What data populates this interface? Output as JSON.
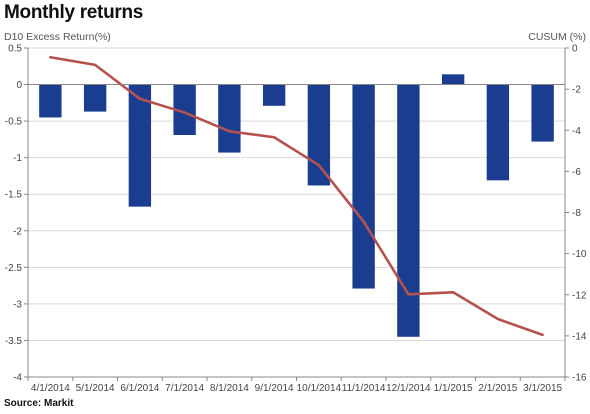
{
  "chart_data": {
    "type": "bar+line",
    "title": "Monthly returns",
    "source": "Source: Markit",
    "y_left_label": "D10 Excess Return(%)",
    "y_right_label": "CUSUM (%)",
    "categories": [
      "4/1/2014",
      "5/1/2014",
      "6/1/2014",
      "7/1/2014",
      "8/1/2014",
      "9/1/2014",
      "10/1/2014",
      "11/1/2014",
      "12/1/2014",
      "1/1/2015",
      "2/1/2015",
      "3/1/2015"
    ],
    "ylim_left": [
      -4,
      0.5
    ],
    "ylim_right": [
      -16,
      0
    ],
    "yticks_left": [
      0.5,
      0,
      -0.5,
      -1,
      -1.5,
      -2,
      -2.5,
      -3,
      -3.5,
      -4
    ],
    "yticks_left_labels": [
      "0.5",
      "0",
      "-0.5",
      "-1",
      "-1.5",
      "-2",
      "-2.5",
      "-3",
      "-3.5",
      "-4"
    ],
    "yticks_right": [
      0,
      -2,
      -4,
      -6,
      -8,
      -10,
      -12,
      -14,
      -16
    ],
    "yticks_right_labels": [
      "0",
      "-2",
      "-4",
      "-6",
      "-8",
      "-10",
      "-12",
      "-14",
      "-16"
    ],
    "grid": true,
    "series": [
      {
        "type": "bar",
        "axis": "left",
        "color": "#1a3d8f",
        "values": [
          -0.45,
          -0.37,
          -1.67,
          -0.69,
          -0.93,
          -0.29,
          -1.38,
          -2.79,
          -3.45,
          0.14,
          -1.31,
          -0.78
        ]
      },
      {
        "type": "line",
        "axis": "right",
        "color": "#b5524f",
        "values": [
          -0.45,
          -0.82,
          -2.47,
          -3.14,
          -4.05,
          -4.34,
          -5.7,
          -8.44,
          -11.98,
          -11.88,
          -13.18,
          -13.95
        ]
      }
    ]
  }
}
